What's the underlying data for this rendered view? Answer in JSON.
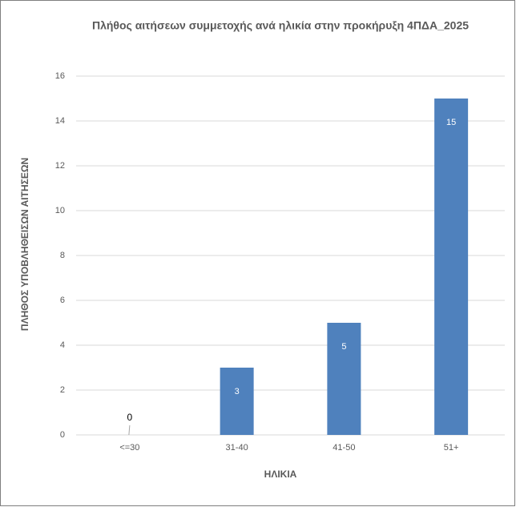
{
  "chart_data": {
    "type": "bar",
    "title": "Πλήθος αιτήσεων συμμετοχής ανά ηλικία στην προκήρυξη 4ΠΔΑ_2025",
    "x_label": "ΗΛΙΚΙΑ",
    "y_label": "ΠΛΗΘΟΣ ΥΠΟΒΛΗΘΕΙΣΩΝ ΑΙΤΗΣΕΩΝ",
    "categories": [
      "<=30",
      "31-40",
      "41-50",
      "51+"
    ],
    "values": [
      0,
      3,
      5,
      15
    ],
    "color": "#4f81bd",
    "ylim": [
      0,
      16
    ],
    "yticks": [
      0,
      2,
      4,
      6,
      8,
      10,
      12,
      14,
      16
    ],
    "grid": true
  }
}
